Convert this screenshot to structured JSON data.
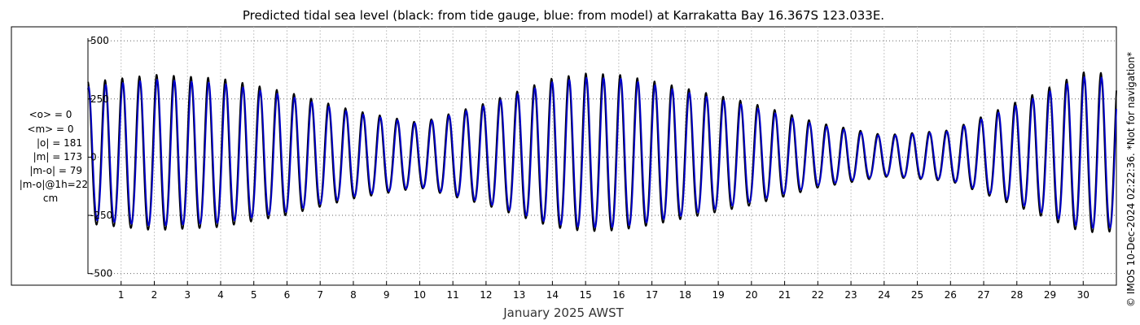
{
  "chart_data": {
    "type": "line",
    "title": "Predicted tidal sea level (black: from tide gauge, blue: from model) at Karrakatta Bay 16.367S 123.033E.",
    "xlabel": "January 2025 AWST",
    "ylabel": "",
    "xlim": [
      0,
      31
    ],
    "ylim": [
      -550,
      560
    ],
    "grid": true,
    "y_ticks": [
      -500,
      -250,
      0,
      250,
      500
    ],
    "y_tick_labels": [
      "-500",
      "-250",
      "0",
      "250",
      "500"
    ],
    "x_ticks": [
      1,
      2,
      3,
      4,
      5,
      6,
      7,
      8,
      9,
      10,
      11,
      12,
      13,
      14,
      15,
      16,
      17,
      18,
      19,
      20,
      21,
      22,
      23,
      24,
      25,
      26,
      27,
      28,
      29,
      30
    ],
    "x_tick_labels": [
      "1",
      "2",
      "3",
      "4",
      "5",
      "6",
      "7",
      "8",
      "9",
      "10",
      "11",
      "12",
      "13",
      "14",
      "15",
      "16",
      "17",
      "18",
      "19",
      "20",
      "21",
      "22",
      "23",
      "24",
      "25",
      "26",
      "27",
      "28",
      "29",
      "30"
    ],
    "x_unit": "day of January 2025 (AWST)",
    "y_unit": "cm",
    "series": [
      {
        "name": "from tide gauge",
        "color": "#000000",
        "amp_envelope": {
          "day": [
            0,
            2,
            4,
            6,
            8,
            10,
            12,
            14,
            15,
            16,
            17,
            18,
            20,
            22,
            24,
            26,
            28,
            30,
            31
          ],
          "amp": [
            305,
            335,
            320,
            265,
            190,
            140,
            220,
            320,
            340,
            335,
            310,
            280,
            220,
            140,
            90,
            110,
            225,
            345,
            340
          ]
        },
        "lag_hours": 0
      },
      {
        "name": "from model",
        "color": "#0000cc",
        "amp_envelope": {
          "day": [
            0,
            2,
            4,
            6,
            8,
            10,
            12,
            14,
            15,
            16,
            17,
            18,
            20,
            22,
            24,
            26,
            28,
            30,
            31
          ],
          "amp": [
            285,
            315,
            300,
            250,
            180,
            135,
            210,
            305,
            322,
            320,
            295,
            265,
            205,
            130,
            85,
            105,
            210,
            325,
            322
          ]
        },
        "lag_hours": 0.5
      }
    ],
    "tidal_period_hours": 12.42,
    "stats": [
      "<o> = 0",
      "<m> = 0",
      "|o| = 181",
      "|m| = 173",
      "|m-o| = 79",
      "|m-o|@1h=22",
      "cm"
    ]
  },
  "credit": "© IMOS 10-Dec-2024 02:22:36. *Not for navigation*"
}
